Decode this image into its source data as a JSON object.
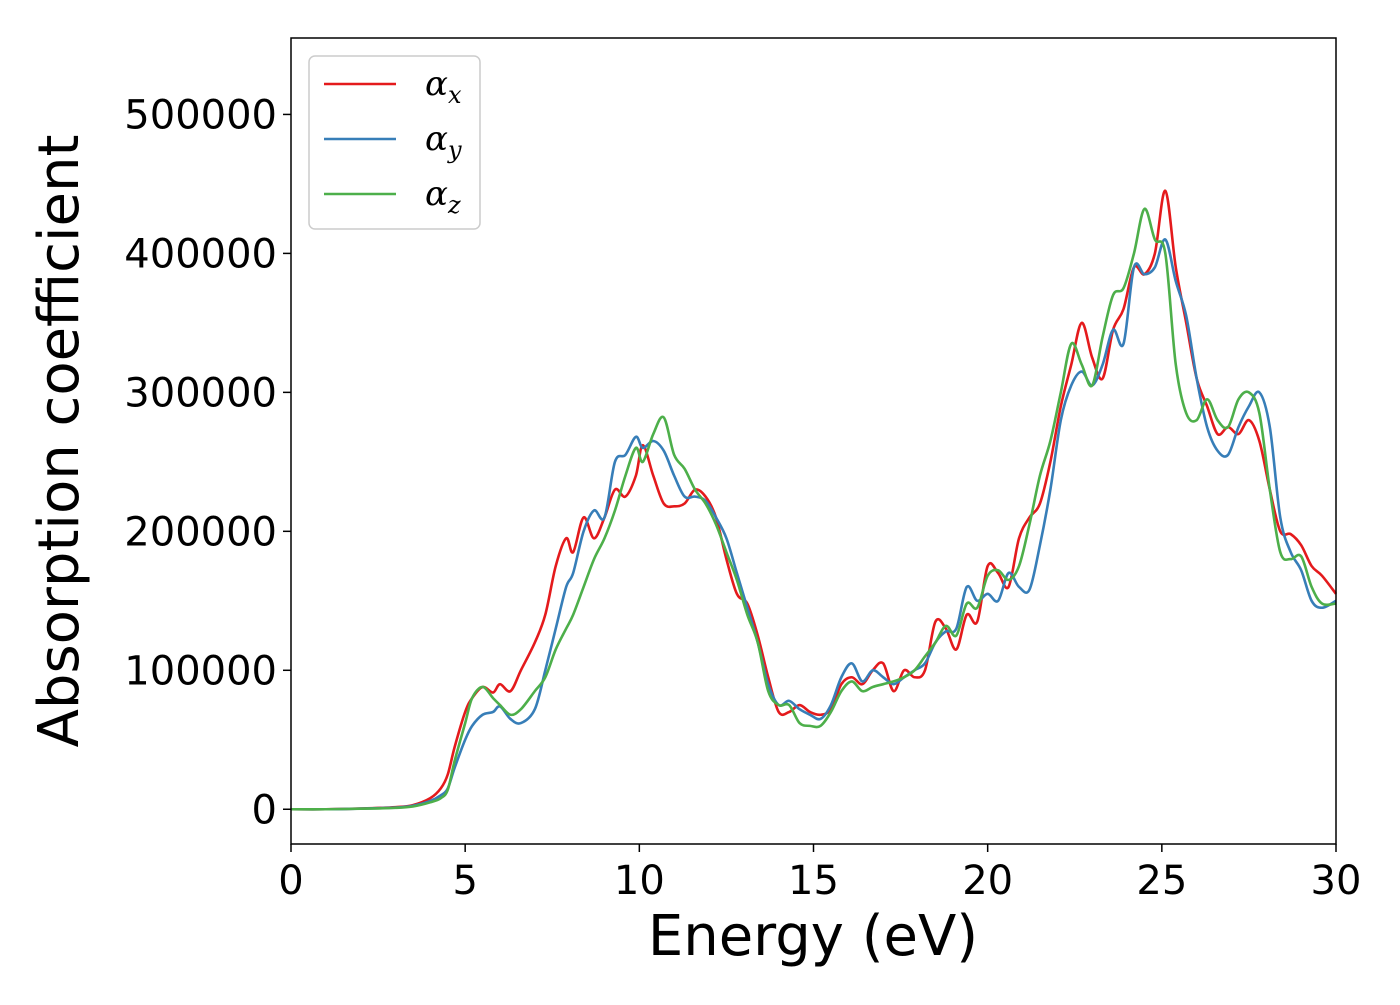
{
  "chart_data": {
    "type": "line",
    "xlabel": "Energy (eV)",
    "ylabel": "Absorption coefficient",
    "xlim": [
      0,
      30
    ],
    "ylim": [
      -25000,
      555000
    ],
    "xticks": [
      "0",
      "5",
      "10",
      "15",
      "20",
      "25",
      "30"
    ],
    "yticks": [
      "0",
      "100000",
      "200000",
      "300000",
      "400000",
      "500000"
    ],
    "grid": false,
    "legend_position": "top-left",
    "series": [
      {
        "name": "α",
        "subscript": "x",
        "color": "#e41a1c",
        "x": [
          0,
          1,
          2,
          3,
          3.5,
          4,
          4.3,
          4.5,
          4.7,
          5,
          5.2,
          5.5,
          5.8,
          6,
          6.3,
          6.6,
          7,
          7.3,
          7.6,
          7.9,
          8.1,
          8.4,
          8.7,
          9,
          9.3,
          9.6,
          9.9,
          10.1,
          10.4,
          10.7,
          11,
          11.3,
          11.6,
          11.9,
          12.2,
          12.5,
          12.8,
          13.1,
          13.4,
          13.7,
          14,
          14.3,
          14.6,
          14.9,
          15.2,
          15.5,
          15.8,
          16.1,
          16.4,
          16.7,
          17,
          17.3,
          17.6,
          17.9,
          18.2,
          18.5,
          18.8,
          19.1,
          19.4,
          19.7,
          20,
          20.3,
          20.6,
          20.9,
          21.2,
          21.5,
          21.8,
          22.1,
          22.4,
          22.7,
          23,
          23.3,
          23.6,
          23.9,
          24.2,
          24.5,
          24.8,
          25.1,
          25.4,
          25.7,
          26,
          26.3,
          26.6,
          26.9,
          27.2,
          27.5,
          27.8,
          28.1,
          28.4,
          28.7,
          29,
          29.3,
          29.6,
          30
        ],
        "y": [
          0,
          0,
          500,
          1500,
          3000,
          8000,
          15000,
          25000,
          45000,
          70000,
          80000,
          88000,
          84000,
          90000,
          85000,
          100000,
          120000,
          140000,
          175000,
          195000,
          185000,
          210000,
          195000,
          210000,
          230000,
          225000,
          240000,
          262000,
          240000,
          220000,
          218000,
          220000,
          230000,
          225000,
          210000,
          180000,
          155000,
          148000,
          125000,
          95000,
          70000,
          70000,
          75000,
          70000,
          68000,
          72000,
          90000,
          95000,
          90000,
          100000,
          105000,
          85000,
          100000,
          95000,
          100000,
          135000,
          130000,
          115000,
          140000,
          135000,
          175000,
          170000,
          160000,
          195000,
          210000,
          220000,
          250000,
          290000,
          320000,
          350000,
          325000,
          310000,
          345000,
          360000,
          390000,
          385000,
          400000,
          445000,
          390000,
          350000,
          310000,
          290000,
          270000,
          275000,
          270000,
          280000,
          265000,
          230000,
          200000,
          198000,
          190000,
          175000,
          168000,
          155000
        ]
      },
      {
        "name": "α",
        "subscript": "y",
        "color": "#377eb8",
        "x": [
          0,
          1,
          2,
          3,
          3.5,
          4,
          4.3,
          4.5,
          4.7,
          5,
          5.2,
          5.5,
          5.8,
          6,
          6.3,
          6.6,
          7,
          7.3,
          7.6,
          7.9,
          8.1,
          8.4,
          8.7,
          9,
          9.3,
          9.6,
          9.9,
          10.1,
          10.4,
          10.7,
          11,
          11.3,
          11.6,
          11.9,
          12.2,
          12.5,
          12.8,
          13.1,
          13.4,
          13.7,
          14,
          14.3,
          14.6,
          14.9,
          15.2,
          15.5,
          15.8,
          16.1,
          16.4,
          16.7,
          17,
          17.3,
          17.6,
          17.9,
          18.2,
          18.5,
          18.8,
          19.1,
          19.4,
          19.7,
          20,
          20.3,
          20.6,
          20.9,
          21.2,
          21.5,
          21.8,
          22.1,
          22.4,
          22.7,
          23,
          23.3,
          23.6,
          23.9,
          24.2,
          24.5,
          24.8,
          25.1,
          25.4,
          25.7,
          26,
          26.3,
          26.6,
          26.9,
          27.2,
          27.5,
          27.8,
          28.1,
          28.4,
          28.7,
          29,
          29.3,
          29.6,
          30
        ],
        "y": [
          0,
          0,
          500,
          1200,
          2500,
          6000,
          10000,
          15000,
          30000,
          50000,
          60000,
          68000,
          70000,
          74000,
          65000,
          62000,
          72000,
          100000,
          130000,
          160000,
          170000,
          200000,
          215000,
          210000,
          250000,
          255000,
          268000,
          260000,
          265000,
          258000,
          240000,
          225000,
          225000,
          222000,
          210000,
          195000,
          170000,
          145000,
          120000,
          90000,
          75000,
          78000,
          72000,
          68000,
          65000,
          75000,
          95000,
          105000,
          92000,
          100000,
          95000,
          90000,
          95000,
          100000,
          105000,
          120000,
          128000,
          130000,
          160000,
          150000,
          155000,
          150000,
          170000,
          160000,
          158000,
          190000,
          230000,
          280000,
          305000,
          315000,
          305000,
          320000,
          345000,
          335000,
          390000,
          385000,
          390000,
          410000,
          380000,
          355000,
          310000,
          275000,
          258000,
          255000,
          275000,
          290000,
          300000,
          275000,
          210000,
          185000,
          172000,
          150000,
          145000,
          150000
        ]
      },
      {
        "name": "α",
        "subscript": "z",
        "color": "#4daf4a",
        "x": [
          0,
          1,
          2,
          3,
          3.5,
          4,
          4.3,
          4.5,
          4.7,
          5,
          5.2,
          5.5,
          5.8,
          6,
          6.3,
          6.6,
          7,
          7.3,
          7.6,
          7.9,
          8.1,
          8.4,
          8.7,
          9,
          9.3,
          9.6,
          9.9,
          10.1,
          10.4,
          10.7,
          11,
          11.3,
          11.6,
          11.9,
          12.2,
          12.5,
          12.8,
          13.1,
          13.4,
          13.7,
          14,
          14.3,
          14.6,
          14.9,
          15.2,
          15.5,
          15.8,
          16.1,
          16.4,
          16.7,
          17,
          17.3,
          17.6,
          17.9,
          18.2,
          18.5,
          18.8,
          19.1,
          19.4,
          19.7,
          20,
          20.3,
          20.6,
          20.9,
          21.2,
          21.5,
          21.8,
          22.1,
          22.4,
          22.7,
          23,
          23.3,
          23.6,
          23.9,
          24.2,
          24.5,
          24.8,
          25.1,
          25.4,
          25.7,
          26,
          26.3,
          26.6,
          26.9,
          27.2,
          27.5,
          27.8,
          28.1,
          28.4,
          28.7,
          29,
          29.3,
          29.6,
          30
        ],
        "y": [
          0,
          0,
          400,
          1000,
          2000,
          5000,
          8000,
          14000,
          35000,
          62000,
          80000,
          88000,
          80000,
          75000,
          68000,
          72000,
          85000,
          95000,
          115000,
          130000,
          140000,
          160000,
          180000,
          195000,
          215000,
          240000,
          260000,
          250000,
          270000,
          282000,
          255000,
          245000,
          230000,
          220000,
          205000,
          185000,
          165000,
          140000,
          120000,
          85000,
          75000,
          75000,
          62000,
          60000,
          60000,
          70000,
          85000,
          92000,
          85000,
          88000,
          90000,
          92000,
          95000,
          100000,
          110000,
          120000,
          132000,
          125000,
          148000,
          145000,
          168000,
          172000,
          165000,
          175000,
          205000,
          240000,
          265000,
          300000,
          335000,
          320000,
          305000,
          340000,
          370000,
          375000,
          400000,
          432000,
          410000,
          400000,
          320000,
          285000,
          280000,
          295000,
          280000,
          275000,
          295000,
          300000,
          285000,
          230000,
          185000,
          180000,
          182000,
          160000,
          148000,
          148000
        ]
      }
    ]
  }
}
